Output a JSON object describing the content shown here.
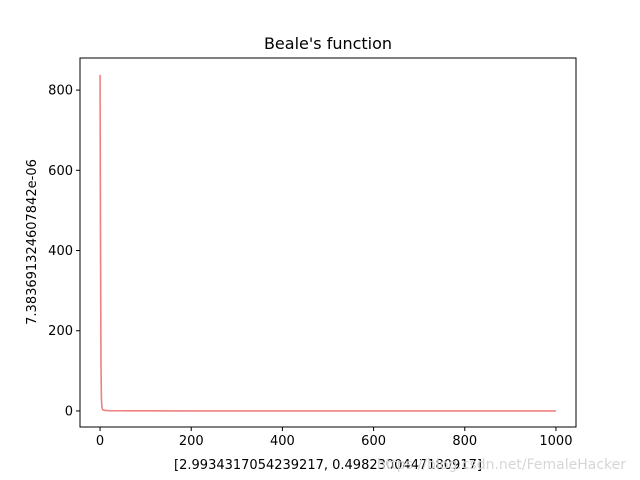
{
  "chart_data": {
    "type": "line",
    "title": "Beale's function",
    "xlabel": "[2.9934317054239217, 0.4982300447180917]",
    "ylabel": "7.383691324607842e-06",
    "xlim": [
      -44,
      1044
    ],
    "ylim": [
      -40,
      880
    ],
    "xticks": [
      0,
      200,
      400,
      600,
      800,
      1000
    ],
    "yticks": [
      0,
      200,
      400,
      600,
      800
    ],
    "grid": false,
    "series": [
      {
        "color": "#f08080",
        "x": [
          0,
          1,
          2,
          3,
          4,
          5,
          6,
          8,
          10,
          15,
          20,
          50,
          100,
          200,
          400,
          600,
          800,
          1000
        ],
        "y": [
          838,
          420,
          120,
          30,
          10,
          5,
          3,
          2,
          1.5,
          1,
          0.8,
          0.5,
          0.3,
          0.1,
          0.05,
          0.02,
          0.01,
          7.4e-06
        ]
      }
    ]
  },
  "watermark": "https://blog.csdn.net/FemaleHacker"
}
